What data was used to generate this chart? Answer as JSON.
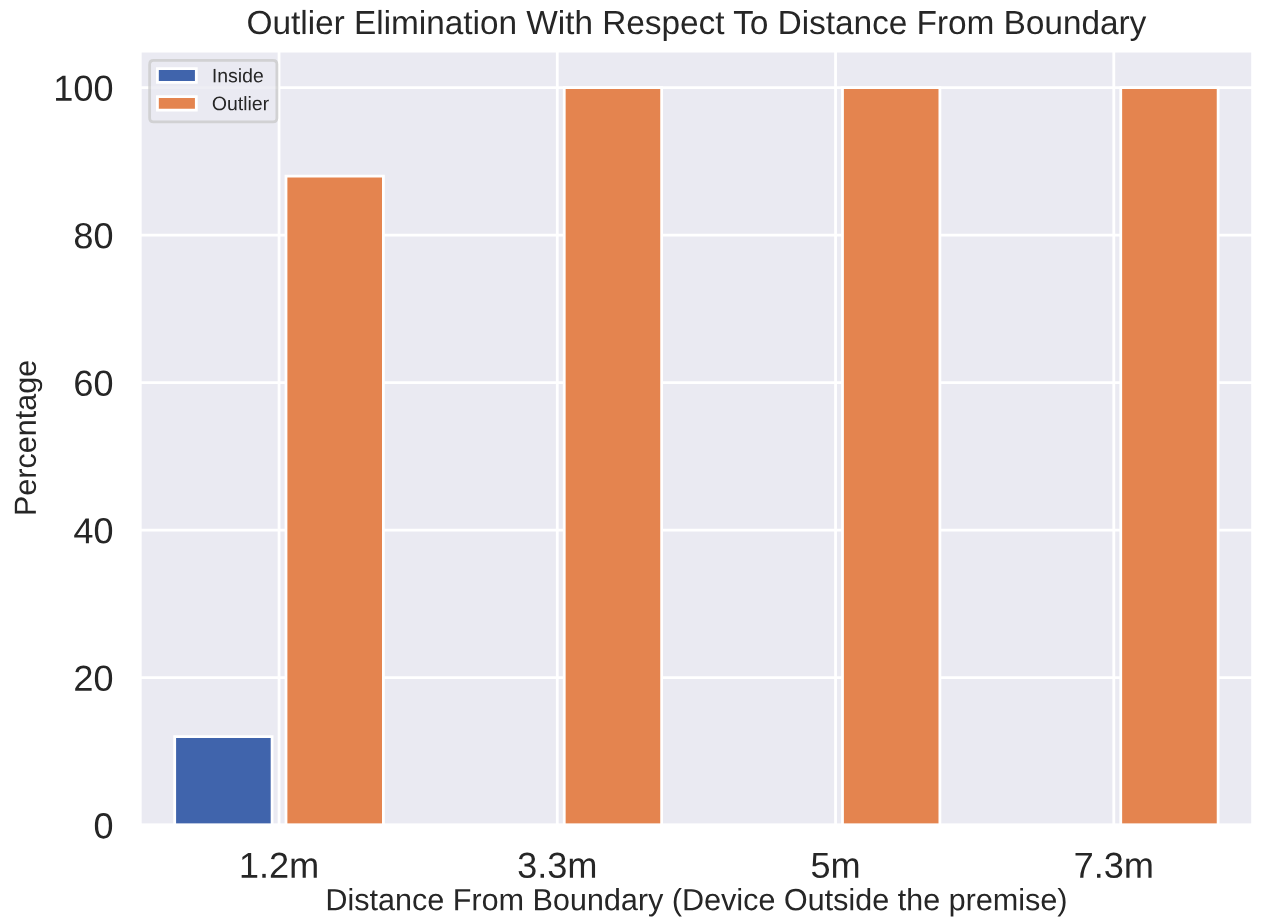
{
  "chart_data": {
    "type": "bar",
    "title": "Outlier Elimination With Respect To Distance From Boundary",
    "xlabel": "Distance From Boundary (Device Outside the premise)",
    "ylabel": "Percentage",
    "categories": [
      "1.2m",
      "3.3m",
      "5m",
      "7.3m"
    ],
    "series": [
      {
        "name": "Inside",
        "color": "#4064ac",
        "values": [
          12,
          null,
          null,
          null
        ]
      },
      {
        "name": "Outlier",
        "color": "#e4844f",
        "values": [
          88,
          100,
          100,
          100
        ]
      }
    ],
    "ylim": [
      0,
      105
    ],
    "yticks": [
      0,
      20,
      40,
      60,
      80,
      100
    ],
    "grid": true,
    "legend": "top left"
  }
}
